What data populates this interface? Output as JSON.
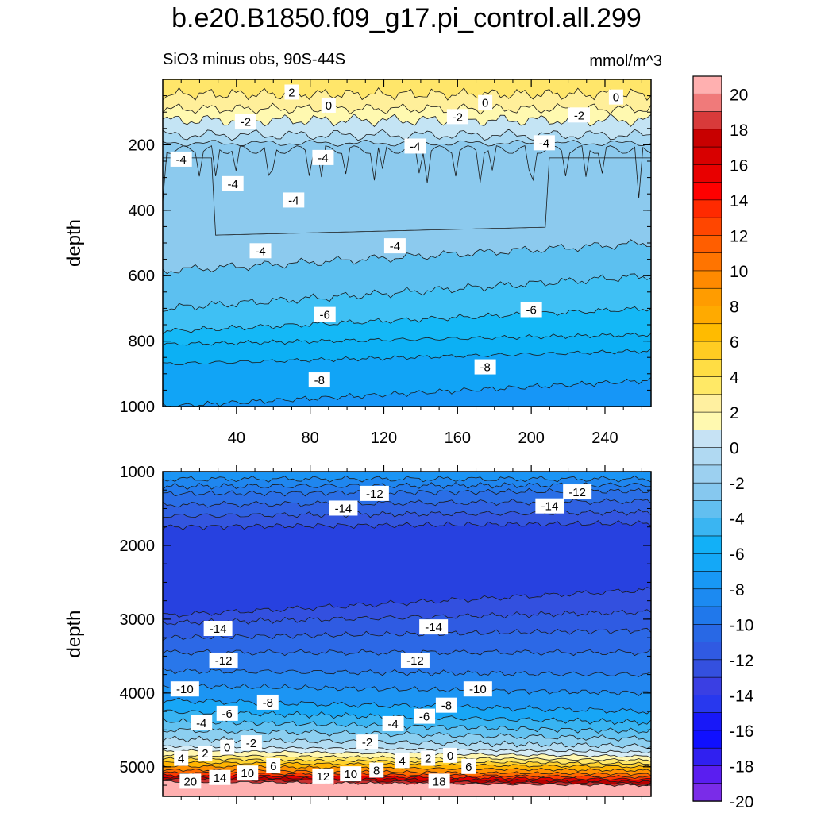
{
  "title": "b.e20.B1850.f09_g17.pi_control.all.299",
  "subtitle": "SiO3 minus obs, 90S-44S",
  "units": "mmol/m^3",
  "colorbar_labels": [
    "20",
    "18",
    "16",
    "14",
    "12",
    "10",
    "8",
    "6",
    "4",
    "2",
    "0",
    "-2",
    "-4",
    "-6",
    "-8",
    "-10",
    "-12",
    "-14",
    "-16",
    "-18",
    "-20"
  ],
  "colors": {
    "levels": [
      "#7a2ce8",
      "#4b10f0",
      "#1010ff",
      "#1a2ee6",
      "#2a4fe0",
      "#3a63e0",
      "#2f6fe6",
      "#1f82f0",
      "#1a98fa",
      "#0fbaf7",
      "#3ab4f0",
      "#5cc0f0",
      "#8ccaee",
      "#a8d8f2",
      "#c4e4f4",
      "#fff9b0",
      "#ffef9a",
      "#ffe66a",
      "#ffd83a",
      "#ffc51a",
      "#ffaa00",
      "#ff9a00",
      "#ff8400",
      "#ff6c00",
      "#ff4a00",
      "#ff2a00",
      "#ff0000",
      "#e20000",
      "#cc0000",
      "#b00000",
      "#d63030",
      "#f07a7a",
      "#ffb0b0"
    ]
  },
  "chart_data": [
    {
      "type": "heatmap",
      "panel": "upper",
      "xlabel": "",
      "ylabel": "depth",
      "xlim": [
        0,
        265
      ],
      "ylim": [
        1000,
        0
      ],
      "xticks": [
        40,
        80,
        120,
        160,
        200,
        240
      ],
      "yticks": [
        200,
        400,
        600,
        800,
        1000
      ],
      "contour_labels": [
        {
          "x": 70,
          "y": 40,
          "v": "2"
        },
        {
          "x": 90,
          "y": 80,
          "v": "0"
        },
        {
          "x": 45,
          "y": 130,
          "v": "-2"
        },
        {
          "x": 160,
          "y": 115,
          "v": "-2"
        },
        {
          "x": 226,
          "y": 110,
          "v": "-2"
        },
        {
          "x": 175,
          "y": 72,
          "v": "0"
        },
        {
          "x": 246,
          "y": 55,
          "v": "0"
        },
        {
          "x": 10,
          "y": 245,
          "v": "-4"
        },
        {
          "x": 38,
          "y": 320,
          "v": "-4"
        },
        {
          "x": 71,
          "y": 370,
          "v": "-4"
        },
        {
          "x": 87,
          "y": 240,
          "v": "-4"
        },
        {
          "x": 137,
          "y": 205,
          "v": "-4"
        },
        {
          "x": 207,
          "y": 195,
          "v": "-4"
        },
        {
          "x": 53,
          "y": 525,
          "v": "-4"
        },
        {
          "x": 126,
          "y": 510,
          "v": "-4"
        },
        {
          "x": 88,
          "y": 720,
          "v": "-6"
        },
        {
          "x": 200,
          "y": 705,
          "v": "-6"
        },
        {
          "x": 85,
          "y": 920,
          "v": "-8"
        },
        {
          "x": 175,
          "y": 880,
          "v": "-8"
        }
      ]
    },
    {
      "type": "heatmap",
      "panel": "lower",
      "xlabel": "",
      "ylabel": "depth",
      "xlim": [
        0,
        265
      ],
      "ylim": [
        5400,
        1000
      ],
      "yticks": [
        1000,
        2000,
        3000,
        4000,
        5000
      ],
      "contour_labels": [
        {
          "x": 115,
          "y": 1300,
          "v": "-12"
        },
        {
          "x": 225,
          "y": 1280,
          "v": "-12"
        },
        {
          "x": 98,
          "y": 1500,
          "v": "-14"
        },
        {
          "x": 210,
          "y": 1470,
          "v": "-14"
        },
        {
          "x": 30,
          "y": 3130,
          "v": "-14"
        },
        {
          "x": 147,
          "y": 3110,
          "v": "-14"
        },
        {
          "x": 33,
          "y": 3560,
          "v": "-12"
        },
        {
          "x": 137,
          "y": 3560,
          "v": "-12"
        },
        {
          "x": 12,
          "y": 3950,
          "v": "-10"
        },
        {
          "x": 171,
          "y": 3950,
          "v": "-10"
        },
        {
          "x": 57,
          "y": 4130,
          "v": "-8"
        },
        {
          "x": 154,
          "y": 4170,
          "v": "-8"
        },
        {
          "x": 35,
          "y": 4280,
          "v": "-6"
        },
        {
          "x": 142,
          "y": 4320,
          "v": "-6"
        },
        {
          "x": 21,
          "y": 4410,
          "v": "-4"
        },
        {
          "x": 125,
          "y": 4420,
          "v": "-4"
        },
        {
          "x": 48,
          "y": 4680,
          "v": "-2"
        },
        {
          "x": 111,
          "y": 4670,
          "v": "-2"
        },
        {
          "x": 35,
          "y": 4740,
          "v": "0"
        },
        {
          "x": 156,
          "y": 4850,
          "v": "0"
        },
        {
          "x": 23,
          "y": 4820,
          "v": "2"
        },
        {
          "x": 144,
          "y": 4890,
          "v": "2"
        },
        {
          "x": 10,
          "y": 4890,
          "v": "4"
        },
        {
          "x": 130,
          "y": 4920,
          "v": "4"
        },
        {
          "x": 60,
          "y": 4990,
          "v": "6"
        },
        {
          "x": 166,
          "y": 5000,
          "v": "6"
        },
        {
          "x": 46,
          "y": 5090,
          "v": "10"
        },
        {
          "x": 102,
          "y": 5100,
          "v": "10"
        },
        {
          "x": 116,
          "y": 5050,
          "v": "8"
        },
        {
          "x": 87,
          "y": 5130,
          "v": "12"
        },
        {
          "x": 31,
          "y": 5150,
          "v": "14"
        },
        {
          "x": 150,
          "y": 5200,
          "v": "18"
        },
        {
          "x": 15,
          "y": 5200,
          "v": "20"
        }
      ]
    }
  ]
}
